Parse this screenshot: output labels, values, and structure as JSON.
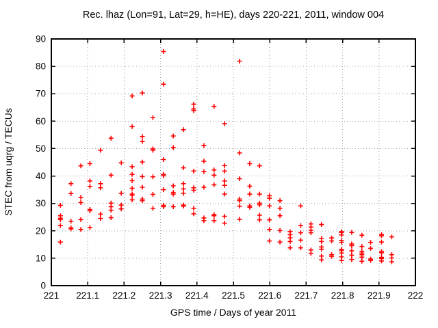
{
  "window": {
    "kind": "gnuplot-scatter-figure"
  },
  "chart_data": {
    "type": "scatter",
    "title": "Rec. lhaz (Lon=91, Lat=29, h=HE), days 220-221, 2011, window 004",
    "xlabel": "GPS time / Days of year 2011",
    "ylabel": "STEC from uqrg / TECUs",
    "xlim": [
      221,
      222
    ],
    "ylim": [
      0,
      90
    ],
    "grid": true,
    "legend": "none",
    "marker": "plus",
    "marker_color": "#ff0000",
    "grid_color": "#9e9e9e",
    "border_color": "#000000",
    "background_color": "#ffffff",
    "xticks": {
      "values": [
        221,
        221.1,
        221.2,
        221.3,
        221.4,
        221.5,
        221.6,
        221.7,
        221.8,
        221.9,
        222
      ],
      "labels": [
        "221",
        "221.1",
        "221.2",
        "221.3",
        "221.4",
        "221.5",
        "221.6",
        "221.7",
        "221.8",
        "221.9",
        "222"
      ]
    },
    "yticks": {
      "values": [
        0,
        10,
        20,
        30,
        40,
        50,
        60,
        70,
        80,
        90
      ],
      "labels": [
        "0",
        "10",
        "20",
        "30",
        "40",
        "50",
        "60",
        "70",
        "80",
        "90"
      ]
    },
    "points": [
      [
        221.025,
        29.3
      ],
      [
        221.025,
        25.5
      ],
      [
        221.025,
        24.6
      ],
      [
        221.025,
        24.1
      ],
      [
        221.025,
        21.9
      ],
      [
        221.025,
        15.9
      ],
      [
        221.054,
        37.2
      ],
      [
        221.054,
        33.6
      ],
      [
        221.054,
        23.5
      ],
      [
        221.054,
        21.1
      ],
      [
        221.054,
        20.7
      ],
      [
        221.081,
        43.7
      ],
      [
        221.081,
        32.2
      ],
      [
        221.081,
        30.3
      ],
      [
        221.081,
        24.1
      ],
      [
        221.081,
        20.5
      ],
      [
        221.106,
        44.5
      ],
      [
        221.106,
        38.2
      ],
      [
        221.106,
        36.2
      ],
      [
        221.106,
        27.8
      ],
      [
        221.106,
        27.3
      ],
      [
        221.106,
        21.2
      ],
      [
        221.135,
        49.4
      ],
      [
        221.135,
        37.2
      ],
      [
        221.135,
        35.7
      ],
      [
        221.135,
        26.1
      ],
      [
        221.135,
        24.5
      ],
      [
        221.164,
        53.8
      ],
      [
        221.164,
        40.3
      ],
      [
        221.164,
        30.1
      ],
      [
        221.164,
        28.8
      ],
      [
        221.164,
        27.5
      ],
      [
        221.164,
        24.8
      ],
      [
        221.192,
        44.8
      ],
      [
        221.192,
        33.7
      ],
      [
        221.192,
        29.4
      ],
      [
        221.192,
        28.0
      ],
      [
        221.222,
        69.2
      ],
      [
        221.222,
        58.0
      ],
      [
        221.222,
        43.4
      ],
      [
        221.222,
        40.6
      ],
      [
        221.222,
        38.3
      ],
      [
        221.222,
        35.5
      ],
      [
        221.222,
        33.4
      ],
      [
        221.222,
        33.0
      ],
      [
        221.222,
        31.3
      ],
      [
        221.25,
        70.3
      ],
      [
        221.25,
        54.4
      ],
      [
        221.25,
        52.6
      ],
      [
        221.25,
        45.1
      ],
      [
        221.25,
        39.8
      ],
      [
        221.25,
        35.9
      ],
      [
        221.25,
        31.6
      ],
      [
        221.25,
        31.0
      ],
      [
        221.279,
        61.3
      ],
      [
        221.279,
        49.9
      ],
      [
        221.279,
        49.4
      ],
      [
        221.279,
        39.7
      ],
      [
        221.279,
        33.3
      ],
      [
        221.279,
        28.2
      ],
      [
        221.308,
        85.4
      ],
      [
        221.308,
        73.5
      ],
      [
        221.308,
        46.0
      ],
      [
        221.308,
        40.6
      ],
      [
        221.308,
        40.1
      ],
      [
        221.308,
        35.0
      ],
      [
        221.308,
        29.3
      ],
      [
        221.308,
        28.8
      ],
      [
        221.335,
        54.6
      ],
      [
        221.335,
        50.4
      ],
      [
        221.335,
        36.4
      ],
      [
        221.335,
        34.0
      ],
      [
        221.335,
        33.4
      ],
      [
        221.335,
        28.8
      ],
      [
        221.363,
        56.9
      ],
      [
        221.363,
        43.0
      ],
      [
        221.363,
        37.2
      ],
      [
        221.363,
        35.3
      ],
      [
        221.363,
        33.7
      ],
      [
        221.363,
        29.4
      ],
      [
        221.363,
        29.0
      ],
      [
        221.391,
        66.2
      ],
      [
        221.391,
        64.5
      ],
      [
        221.391,
        63.9
      ],
      [
        221.391,
        41.8
      ],
      [
        221.391,
        35.7
      ],
      [
        221.391,
        34.8
      ],
      [
        221.391,
        28.2
      ],
      [
        221.391,
        26.2
      ],
      [
        221.419,
        51.1
      ],
      [
        221.419,
        45.4
      ],
      [
        221.419,
        41.6
      ],
      [
        221.419,
        35.9
      ],
      [
        221.419,
        24.7
      ],
      [
        221.419,
        23.7
      ],
      [
        221.447,
        65.4
      ],
      [
        221.447,
        42.2
      ],
      [
        221.447,
        40.3
      ],
      [
        221.447,
        36.8
      ],
      [
        221.447,
        25.9
      ],
      [
        221.447,
        25.5
      ],
      [
        221.447,
        23.7
      ],
      [
        221.476,
        59.1
      ],
      [
        221.476,
        43.8
      ],
      [
        221.476,
        41.8
      ],
      [
        221.476,
        38.2
      ],
      [
        221.476,
        36.6
      ],
      [
        221.476,
        33.4
      ],
      [
        221.476,
        25.3
      ],
      [
        221.476,
        22.8
      ],
      [
        221.517,
        81.9
      ],
      [
        221.517,
        48.4
      ],
      [
        221.517,
        39.0
      ],
      [
        221.517,
        31.6
      ],
      [
        221.517,
        31.0
      ],
      [
        221.517,
        29.0
      ],
      [
        221.517,
        24.2
      ],
      [
        221.545,
        44.5
      ],
      [
        221.545,
        36.3
      ],
      [
        221.545,
        33.4
      ],
      [
        221.545,
        29.1
      ],
      [
        221.545,
        28.6
      ],
      [
        221.572,
        43.7
      ],
      [
        221.572,
        33.4
      ],
      [
        221.572,
        30.1
      ],
      [
        221.572,
        29.5
      ],
      [
        221.572,
        25.7
      ],
      [
        221.572,
        24.0
      ],
      [
        221.599,
        32.8
      ],
      [
        221.599,
        31.9
      ],
      [
        221.599,
        29.1
      ],
      [
        221.599,
        24.0
      ],
      [
        221.599,
        20.5
      ],
      [
        221.599,
        16.3
      ],
      [
        221.628,
        31.0
      ],
      [
        221.628,
        28.2
      ],
      [
        221.628,
        25.5
      ],
      [
        221.628,
        20.1
      ],
      [
        221.628,
        15.9
      ],
      [
        221.656,
        19.7
      ],
      [
        221.656,
        18.6
      ],
      [
        221.656,
        17.4
      ],
      [
        221.656,
        16.1
      ],
      [
        221.656,
        13.8
      ],
      [
        221.685,
        29.1
      ],
      [
        221.685,
        21.9
      ],
      [
        221.685,
        19.3
      ],
      [
        221.685,
        16.6
      ],
      [
        221.685,
        13.8
      ],
      [
        221.713,
        22.5
      ],
      [
        221.713,
        21.4
      ],
      [
        221.713,
        20.2
      ],
      [
        221.713,
        19.3
      ],
      [
        221.713,
        13.0
      ],
      [
        221.713,
        11.8
      ],
      [
        221.742,
        22.3
      ],
      [
        221.742,
        17.2
      ],
      [
        221.742,
        16.1
      ],
      [
        221.742,
        14.1
      ],
      [
        221.742,
        13.3
      ],
      [
        221.742,
        10.8
      ],
      [
        221.742,
        9.4
      ],
      [
        221.77,
        17.4
      ],
      [
        221.77,
        16.3
      ],
      [
        221.77,
        11.3
      ],
      [
        221.77,
        10.7
      ],
      [
        221.797,
        19.7
      ],
      [
        221.797,
        19.4
      ],
      [
        221.797,
        18.5
      ],
      [
        221.797,
        16.5
      ],
      [
        221.797,
        15.8
      ],
      [
        221.797,
        13.2
      ],
      [
        221.797,
        12.8
      ],
      [
        221.797,
        11.9
      ],
      [
        221.797,
        10.5
      ],
      [
        221.797,
        9.2
      ],
      [
        221.825,
        19.4
      ],
      [
        221.825,
        15.2
      ],
      [
        221.825,
        14.6
      ],
      [
        221.825,
        12.7
      ],
      [
        221.825,
        11.1
      ],
      [
        221.825,
        9.5
      ],
      [
        221.853,
        18.4
      ],
      [
        221.853,
        14.3
      ],
      [
        221.853,
        12.5
      ],
      [
        221.853,
        11.9
      ],
      [
        221.853,
        11.3
      ],
      [
        221.853,
        10.4
      ],
      [
        221.853,
        8.9
      ],
      [
        221.877,
        15.8
      ],
      [
        221.877,
        13.6
      ],
      [
        221.877,
        9.7
      ],
      [
        221.877,
        9.2
      ],
      [
        221.907,
        18.6
      ],
      [
        221.907,
        18.2
      ],
      [
        221.907,
        15.9
      ],
      [
        221.907,
        12.4
      ],
      [
        221.907,
        12.0
      ],
      [
        221.907,
        10.3
      ],
      [
        221.907,
        9.9
      ],
      [
        221.907,
        9.0
      ],
      [
        221.935,
        17.8
      ],
      [
        221.935,
        11.3
      ],
      [
        221.935,
        10.1
      ],
      [
        221.935,
        8.7
      ]
    ]
  }
}
